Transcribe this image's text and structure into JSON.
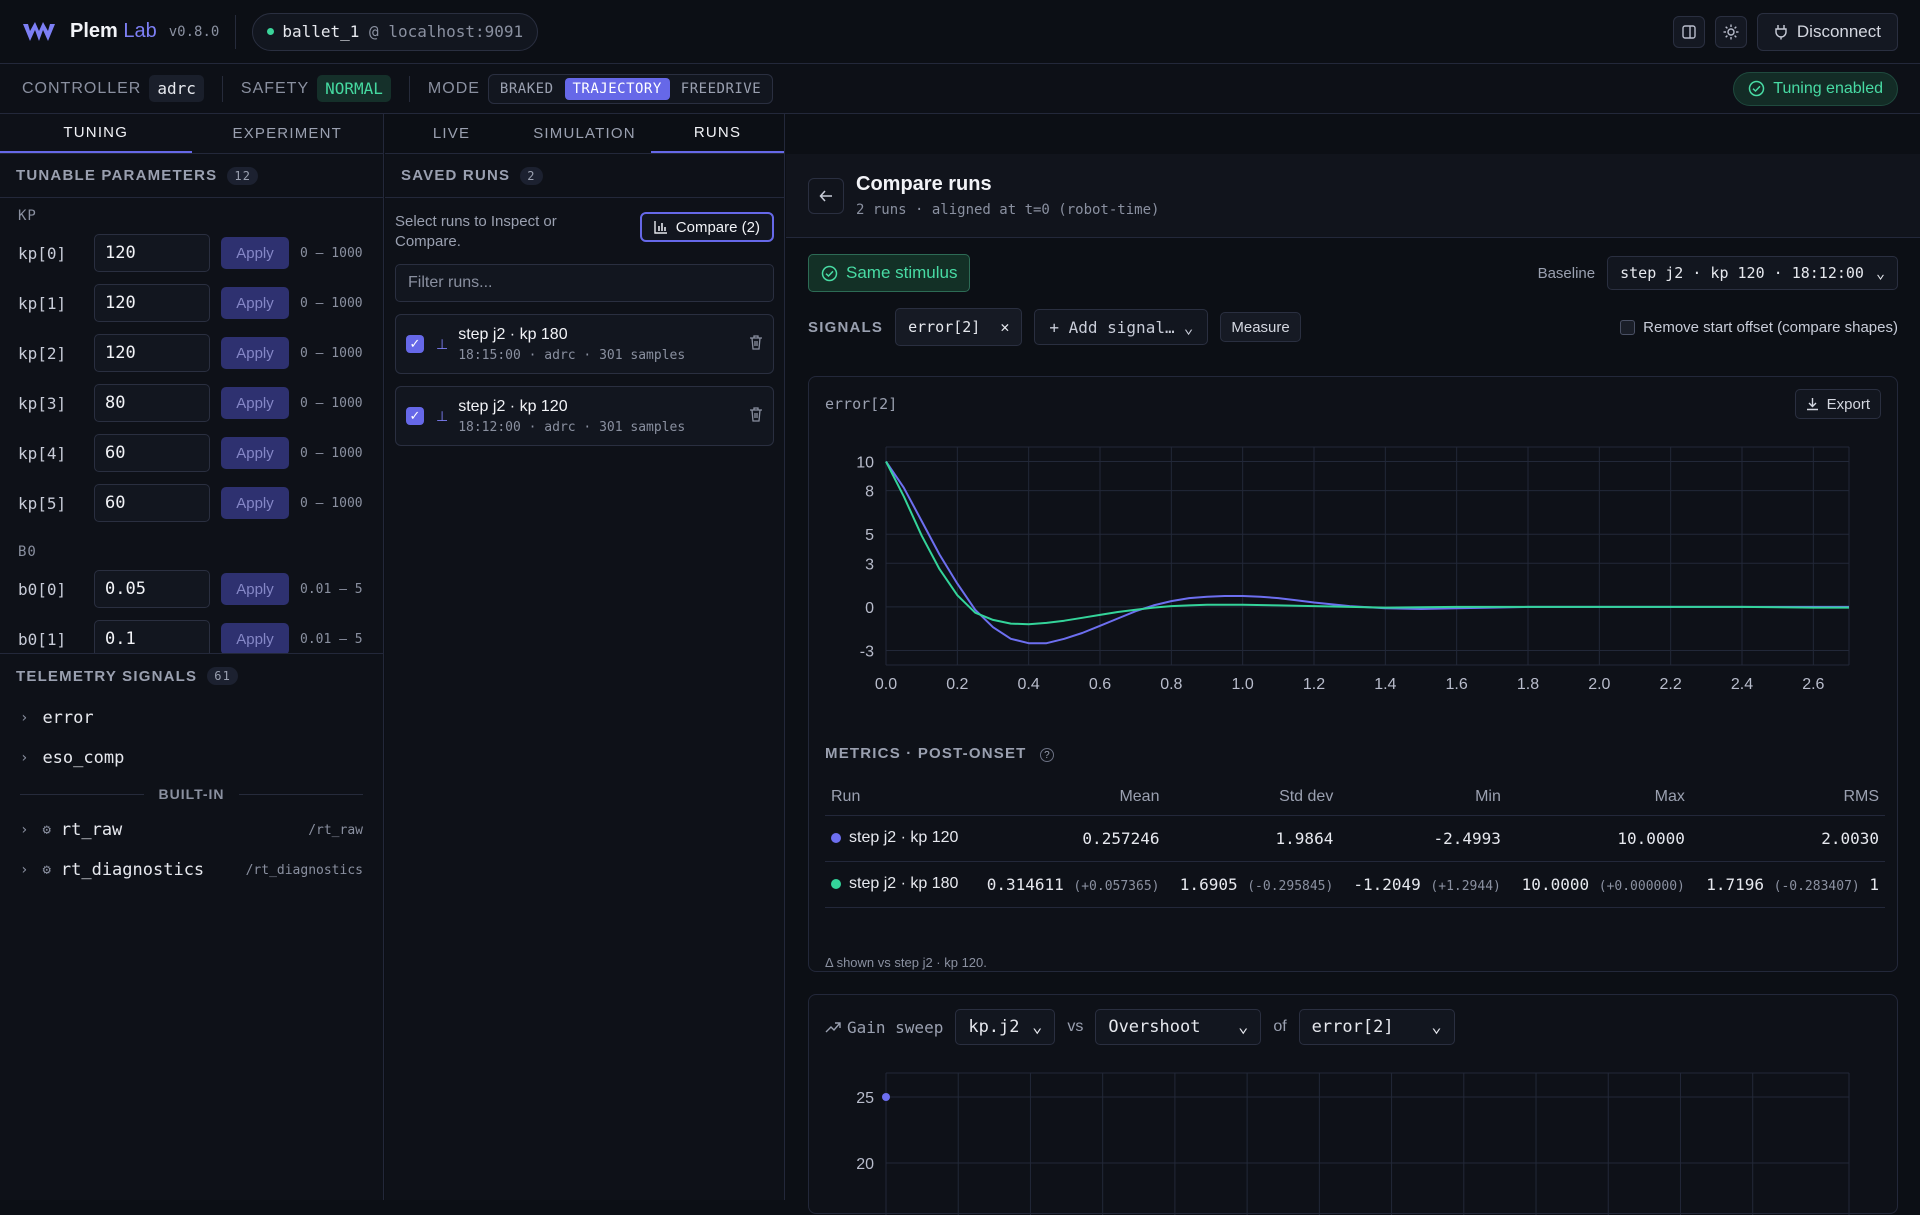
{
  "app": {
    "name": "Plem",
    "name_accent": "Lab",
    "version": "v0.8.0"
  },
  "connection": {
    "robot": "ballet_1",
    "at": "@",
    "host": "localhost:9091"
  },
  "topbar": {
    "disconnect_label": "Disconnect"
  },
  "controller_bar": {
    "controller_label": "CONTROLLER",
    "controller_value": "adrc",
    "safety_label": "SAFETY",
    "safety_value": "NORMAL",
    "mode_label": "MODE",
    "modes": [
      "BRAKED",
      "TRAJECTORY",
      "FREEDRIVE"
    ],
    "active_mode": "TRAJECTORY",
    "tuning_badge": "Tuning enabled"
  },
  "left_tabs": [
    "TUNING",
    "EXPERIMENT"
  ],
  "tunable": {
    "title": "TUNABLE PARAMETERS",
    "count": "12",
    "groups": [
      {
        "name": "KP",
        "params": [
          {
            "name": "kp[0]",
            "value": "120",
            "range": "0 — 1000"
          },
          {
            "name": "kp[1]",
            "value": "120",
            "range": "0 — 1000"
          },
          {
            "name": "kp[2]",
            "value": "120",
            "range": "0 — 1000"
          },
          {
            "name": "kp[3]",
            "value": "80",
            "range": "0 — 1000"
          },
          {
            "name": "kp[4]",
            "value": "60",
            "range": "0 — 1000"
          },
          {
            "name": "kp[5]",
            "value": "60",
            "range": "0 — 1000"
          }
        ]
      },
      {
        "name": "B0",
        "params": [
          {
            "name": "b0[0]",
            "value": "0.05",
            "range": "0.01 — 5"
          },
          {
            "name": "b0[1]",
            "value": "0.1",
            "range": "0.01 — 5"
          }
        ]
      }
    ],
    "apply_label": "Apply"
  },
  "telemetry": {
    "title": "TELEMETRY SIGNALS",
    "count": "61",
    "items": [
      "error",
      "eso_comp"
    ],
    "builtin_label": "BUILT-IN",
    "builtin": [
      {
        "name": "rt_raw",
        "path": "/rt_raw"
      },
      {
        "name": "rt_diagnostics",
        "path": "/rt_diagnostics"
      }
    ]
  },
  "main_tabs": [
    "LIVE",
    "SIMULATION",
    "RUNS"
  ],
  "active_main_tab": "RUNS",
  "saved_runs": {
    "title": "SAVED RUNS",
    "count": "2",
    "hint": "Select runs to Inspect or Compare.",
    "compare_label": "Compare (2)",
    "filter_placeholder": "Filter runs...",
    "runs": [
      {
        "title": "step j2 · kp 180",
        "meta": "18:15:00 · adrc · 301 samples",
        "checked": true
      },
      {
        "title": "step j2 · kp 120",
        "meta": "18:12:00 · adrc · 301 samples",
        "checked": true
      }
    ]
  },
  "compare": {
    "title": "Compare runs",
    "subtitle": "2 runs · aligned at t=0 (robot-time)",
    "same_stimulus": "Same stimulus",
    "baseline_label": "Baseline",
    "baseline_value": "step j2 · kp 120 · 18:12:00",
    "signals_label": "SIGNALS",
    "signal_chip": "error[2]",
    "add_signal": "+ Add signal…",
    "measure_label": "Measure",
    "remove_offset_label": "Remove start offset (compare shapes)",
    "plot_signal": "error[2]",
    "export_label": "Export",
    "metrics_title": "METRICS · POST-ONSET",
    "metrics_headers": [
      "Run",
      "Mean",
      "Std dev",
      "Min",
      "Max",
      "RMS"
    ],
    "metrics_rows": [
      {
        "run": "step j2 · kp 120",
        "color": "#6d6ff0",
        "mean": "0.257246",
        "std": "1.9864",
        "min": "-2.4993",
        "max": "10.0000",
        "rms": "2.0030",
        "dmean": "",
        "dstd": "",
        "dmin": "",
        "dmax": "",
        "drms": ""
      },
      {
        "run": "step j2 · kp 180",
        "color": "#34d49a",
        "mean": "0.314611",
        "std": "1.6905",
        "min": "-1.2049",
        "max": "10.0000",
        "rms": "1.7196",
        "dmean": "(+0.057365)",
        "dstd": "(-0.295845)",
        "dmin": "(+1.2944)",
        "dmax": "(+0.000000)",
        "drms": "(-0.283407)",
        "extra": "1"
      }
    ],
    "delta_note": "Δ shown vs step j2 · kp 120.",
    "sweep": {
      "label": "Gain sweep",
      "param": "kp.j2",
      "vs": "vs",
      "metric": "Overshoot",
      "of": "of",
      "signal": "error[2]"
    }
  },
  "chart_data": [
    {
      "type": "line",
      "title": "error[2]",
      "xlabel": "",
      "ylabel": "",
      "xlim": [
        0,
        2.7
      ],
      "ylim": [
        -4,
        11
      ],
      "xticks": [
        "0.0",
        "0.2",
        "0.4",
        "0.6",
        "0.8",
        "1.0",
        "1.2",
        "1.4",
        "1.6",
        "1.8",
        "2.0",
        "2.2",
        "2.4",
        "2.6"
      ],
      "yticks": [
        "10",
        "8",
        "5",
        "3",
        "0",
        "-3"
      ],
      "ytick_values": [
        10,
        8,
        5,
        3,
        0,
        -3
      ],
      "grid": true,
      "series": [
        {
          "name": "step j2 · kp 120",
          "color": "#6d6ff0",
          "x": [
            0,
            0.05,
            0.1,
            0.15,
            0.2,
            0.25,
            0.3,
            0.35,
            0.4,
            0.45,
            0.5,
            0.55,
            0.6,
            0.65,
            0.7,
            0.75,
            0.8,
            0.85,
            0.9,
            0.95,
            1.0,
            1.05,
            1.1,
            1.15,
            1.2,
            1.3,
            1.4,
            1.5,
            1.6,
            1.7,
            1.8,
            2.0,
            2.2,
            2.4,
            2.6,
            2.7
          ],
          "y": [
            10,
            8.2,
            5.9,
            3.6,
            1.6,
            -0.2,
            -1.4,
            -2.2,
            -2.5,
            -2.5,
            -2.2,
            -1.8,
            -1.3,
            -0.8,
            -0.3,
            0.1,
            0.4,
            0.6,
            0.7,
            0.75,
            0.75,
            0.7,
            0.6,
            0.45,
            0.3,
            0.05,
            -0.1,
            -0.15,
            -0.1,
            -0.05,
            0,
            0,
            0,
            0,
            0,
            0
          ]
        },
        {
          "name": "step j2 · kp 180",
          "color": "#34d49a",
          "x": [
            0,
            0.05,
            0.1,
            0.15,
            0.2,
            0.25,
            0.3,
            0.35,
            0.4,
            0.45,
            0.5,
            0.55,
            0.6,
            0.65,
            0.7,
            0.75,
            0.8,
            0.85,
            0.9,
            1.0,
            1.1,
            1.2,
            1.3,
            1.4,
            1.6,
            1.8,
            2.0,
            2.2,
            2.4,
            2.6,
            2.7
          ],
          "y": [
            10,
            7.6,
            4.9,
            2.6,
            0.8,
            -0.4,
            -0.9,
            -1.15,
            -1.2,
            -1.1,
            -0.95,
            -0.75,
            -0.55,
            -0.35,
            -0.2,
            -0.05,
            0.05,
            0.1,
            0.15,
            0.15,
            0.1,
            0.05,
            0,
            -0.05,
            0,
            0,
            0,
            0,
            0,
            -0.05,
            -0.05
          ]
        }
      ]
    },
    {
      "type": "scatter",
      "title": "Gain sweep",
      "xlabel": "",
      "ylabel": "",
      "yticks": [
        "25",
        "20"
      ],
      "ytick_values": [
        25,
        20
      ],
      "grid": true,
      "series": [
        {
          "name": "",
          "color": "#6d6ff0",
          "x": [
            0
          ],
          "y": [
            25
          ]
        }
      ]
    }
  ]
}
